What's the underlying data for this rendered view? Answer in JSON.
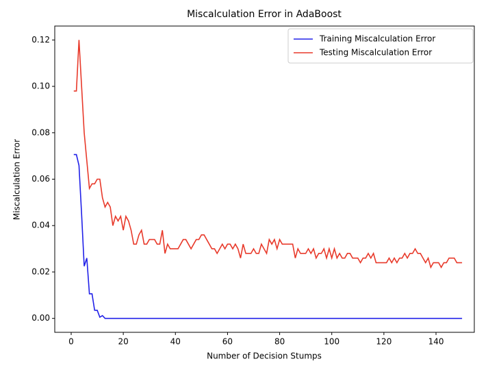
{
  "chart_data": {
    "type": "line",
    "title": "Miscalculation Error in AdaBoost",
    "x_label": "Number of Decision Stumps",
    "y_label": "Miscalculation Error",
    "x": [
      1,
      2,
      3,
      4,
      5,
      6,
      7,
      8,
      9,
      10,
      11,
      12,
      13,
      14,
      15,
      16,
      17,
      18,
      19,
      20,
      21,
      22,
      23,
      24,
      25,
      26,
      27,
      28,
      29,
      30,
      31,
      32,
      33,
      34,
      35,
      36,
      37,
      38,
      39,
      40,
      41,
      42,
      43,
      44,
      45,
      46,
      47,
      48,
      49,
      50,
      51,
      52,
      53,
      54,
      55,
      56,
      57,
      58,
      59,
      60,
      61,
      62,
      63,
      64,
      65,
      66,
      67,
      68,
      69,
      70,
      71,
      72,
      73,
      74,
      75,
      76,
      77,
      78,
      79,
      80,
      81,
      82,
      83,
      84,
      85,
      86,
      87,
      88,
      89,
      90,
      91,
      92,
      93,
      94,
      95,
      96,
      97,
      98,
      99,
      100,
      101,
      102,
      103,
      104,
      105,
      106,
      107,
      108,
      109,
      110,
      111,
      112,
      113,
      114,
      115,
      116,
      117,
      118,
      119,
      120,
      121,
      122,
      123,
      124,
      125,
      126,
      127,
      128,
      129,
      130,
      131,
      132,
      133,
      134,
      135,
      136,
      137,
      138,
      139,
      140,
      141,
      142,
      143,
      144,
      145,
      146,
      147,
      148,
      149,
      150
    ],
    "series": [
      {
        "name": "Training Miscalculation Error",
        "color": "#2020e8",
        "values": [
          0.0706,
          0.0706,
          0.0659,
          0.045,
          0.0225,
          0.026,
          0.0106,
          0.0106,
          0.0035,
          0.0035,
          0.0005,
          0.0012,
          0,
          0,
          0,
          0,
          0,
          0,
          0,
          0,
          0,
          0,
          0,
          0,
          0,
          0,
          0,
          0,
          0,
          0,
          0,
          0,
          0,
          0,
          0,
          0,
          0,
          0,
          0,
          0,
          0,
          0,
          0,
          0,
          0,
          0,
          0,
          0,
          0,
          0,
          0,
          0,
          0,
          0,
          0,
          0,
          0,
          0,
          0,
          0,
          0,
          0,
          0,
          0,
          0,
          0,
          0,
          0,
          0,
          0,
          0,
          0,
          0,
          0,
          0,
          0,
          0,
          0,
          0,
          0,
          0,
          0,
          0,
          0,
          0,
          0,
          0,
          0,
          0,
          0,
          0,
          0,
          0,
          0,
          0,
          0,
          0,
          0,
          0,
          0,
          0,
          0,
          0,
          0,
          0,
          0,
          0,
          0,
          0,
          0,
          0,
          0,
          0,
          0,
          0,
          0,
          0,
          0,
          0,
          0,
          0,
          0,
          0,
          0,
          0,
          0,
          0,
          0,
          0,
          0,
          0,
          0,
          0,
          0,
          0,
          0,
          0,
          0,
          0,
          0,
          0,
          0,
          0,
          0,
          0,
          0,
          0,
          0,
          0,
          0
        ]
      },
      {
        "name": "Testing Miscalculation Error",
        "color": "#e8392a",
        "values": [
          0.098,
          0.098,
          0.12,
          0.1,
          0.08,
          0.068,
          0.056,
          0.058,
          0.058,
          0.06,
          0.06,
          0.052,
          0.048,
          0.05,
          0.048,
          0.04,
          0.044,
          0.042,
          0.044,
          0.038,
          0.044,
          0.042,
          0.038,
          0.032,
          0.032,
          0.036,
          0.038,
          0.032,
          0.032,
          0.034,
          0.034,
          0.034,
          0.032,
          0.032,
          0.038,
          0.028,
          0.032,
          0.03,
          0.03,
          0.03,
          0.03,
          0.032,
          0.034,
          0.034,
          0.032,
          0.03,
          0.032,
          0.034,
          0.034,
          0.036,
          0.036,
          0.034,
          0.032,
          0.03,
          0.03,
          0.028,
          0.03,
          0.032,
          0.03,
          0.032,
          0.032,
          0.03,
          0.032,
          0.03,
          0.026,
          0.032,
          0.028,
          0.028,
          0.028,
          0.03,
          0.028,
          0.028,
          0.032,
          0.03,
          0.028,
          0.034,
          0.032,
          0.034,
          0.03,
          0.034,
          0.032,
          0.032,
          0.032,
          0.032,
          0.032,
          0.026,
          0.03,
          0.028,
          0.028,
          0.028,
          0.03,
          0.028,
          0.03,
          0.026,
          0.028,
          0.028,
          0.03,
          0.026,
          0.03,
          0.026,
          0.03,
          0.026,
          0.028,
          0.026,
          0.026,
          0.028,
          0.028,
          0.026,
          0.026,
          0.026,
          0.024,
          0.026,
          0.026,
          0.028,
          0.026,
          0.028,
          0.024,
          0.024,
          0.024,
          0.024,
          0.024,
          0.026,
          0.024,
          0.026,
          0.024,
          0.026,
          0.026,
          0.028,
          0.026,
          0.028,
          0.028,
          0.03,
          0.028,
          0.028,
          0.026,
          0.024,
          0.026,
          0.022,
          0.024,
          0.024,
          0.024,
          0.022,
          0.024,
          0.024,
          0.026,
          0.026,
          0.026,
          0.024,
          0.024,
          0.024
        ]
      }
    ],
    "xlim": [
      -6.3,
      154.7
    ],
    "xticks": [
      0,
      20,
      40,
      60,
      80,
      100,
      120,
      140
    ],
    "ylim": [
      -0.006,
      0.126
    ],
    "yticks": [
      {
        "value": 0,
        "label": "0.00"
      },
      {
        "value": 0.02,
        "label": "0.02"
      },
      {
        "value": 0.04,
        "label": "0.04"
      },
      {
        "value": 0.06,
        "label": "0.06"
      },
      {
        "value": 0.08,
        "label": "0.08"
      },
      {
        "value": 0.1,
        "label": "0.10"
      },
      {
        "value": 0.12,
        "label": "0.12"
      }
    ],
    "legend": "upper right"
  }
}
